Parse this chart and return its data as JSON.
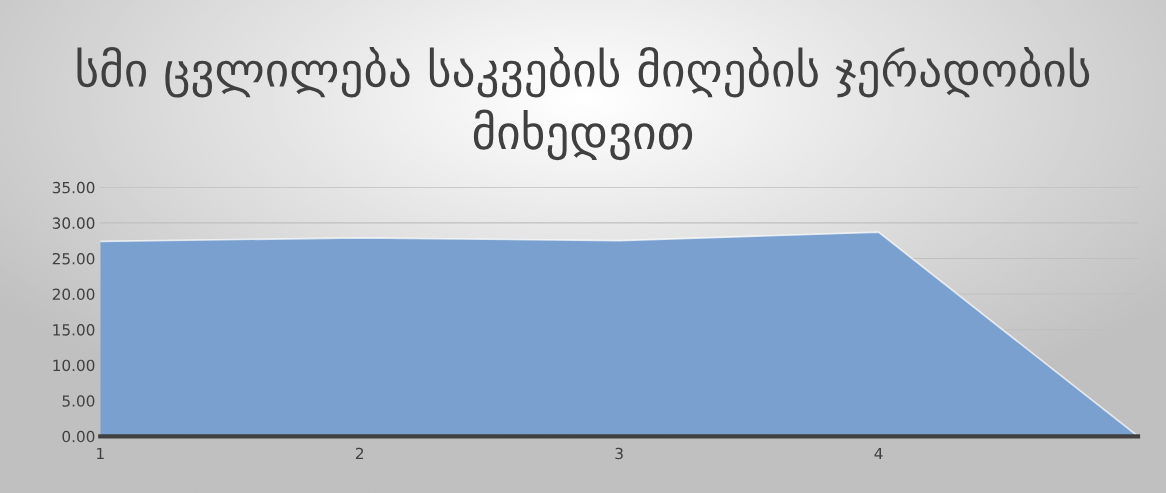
{
  "chart_data": {
    "type": "area",
    "title": "სმი ცვლილება საკვების მიღების ჯერადობის მიხედვით",
    "categories": [
      "1",
      "2",
      "3",
      "4",
      null
    ],
    "series": [
      {
        "color": "#7aa0cf",
        "values": [
          27.4,
          27.9,
          27.5,
          28.7,
          0
        ]
      }
    ],
    "ylim": [
      0,
      35
    ],
    "yticks": [
      {
        "value": 0,
        "label": "0.00"
      },
      {
        "value": 5,
        "label": "5.00"
      },
      {
        "value": 10,
        "label": "10.00"
      },
      {
        "value": 15,
        "label": "15.00"
      },
      {
        "value": 20,
        "label": "20.00"
      },
      {
        "value": 25,
        "label": "25.00"
      },
      {
        "value": 30,
        "label": "30.00"
      },
      {
        "value": 35,
        "label": "35.00"
      }
    ],
    "grid": "y"
  }
}
